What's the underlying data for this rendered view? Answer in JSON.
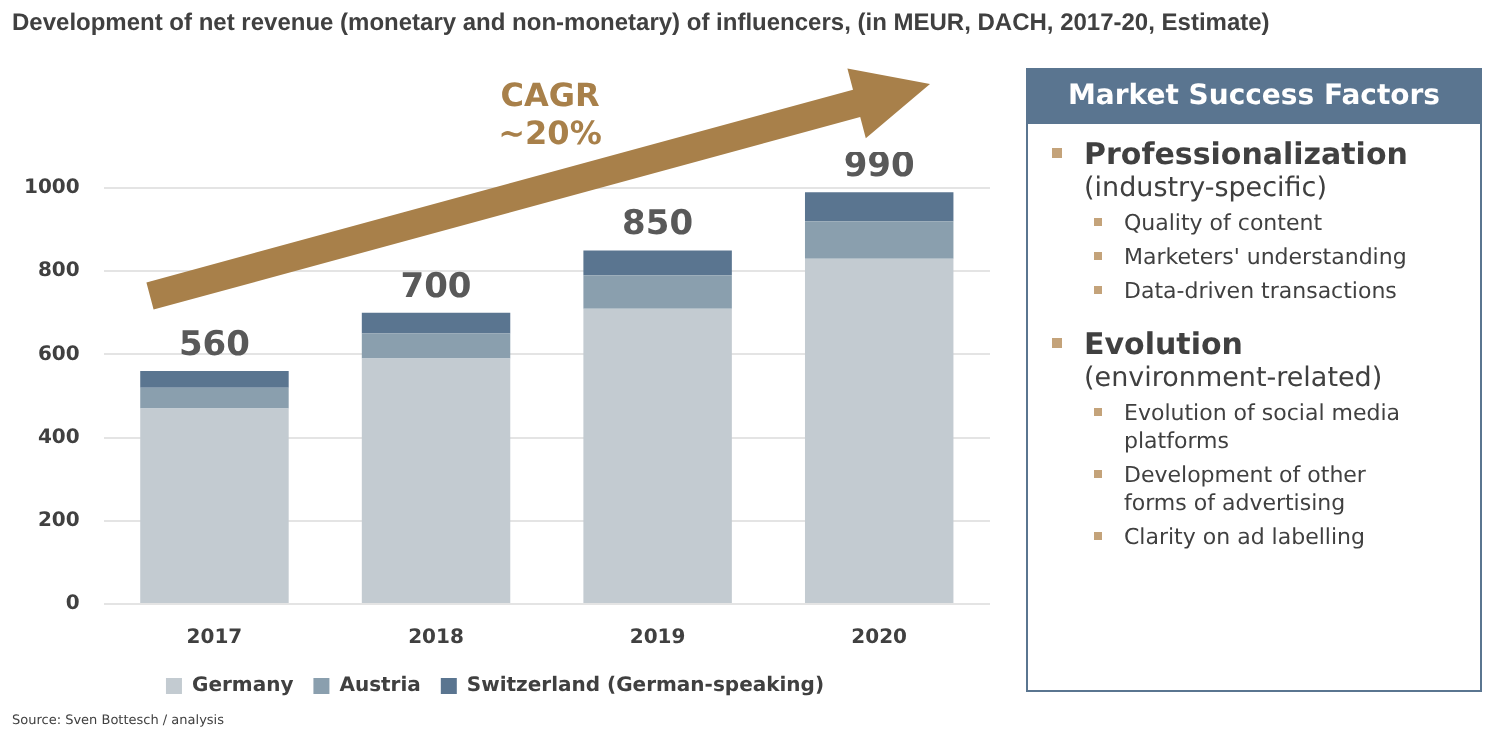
{
  "chart_data": [
    {
      "type": "bar",
      "title": "Development of net revenue (monetary and non-monetary) of influencers, (in MEUR, DACH, 2017-20, Estimate)",
      "categories": [
        "2017",
        "2018",
        "2019",
        "2020"
      ],
      "stacked": true,
      "series": [
        {
          "name": "Germany",
          "color": "#c3cbd1",
          "values": [
            470,
            590,
            710,
            830
          ]
        },
        {
          "name": "Austria",
          "color": "#8a9fae",
          "values": [
            50,
            60,
            80,
            90
          ]
        },
        {
          "name": "Switzerland (German-speaking)",
          "color": "#5a7590",
          "values": [
            40,
            50,
            60,
            70
          ]
        }
      ],
      "totals": [
        "560",
        "700",
        "850",
        "990"
      ],
      "ylim": [
        0,
        1000
      ],
      "yticks": [
        0,
        200,
        400,
        600,
        800,
        1000
      ],
      "grid": "y",
      "legend": "bottom",
      "annotations": [
        "CAGR",
        "~20%",
        "Source: Sven Bottesch / analysis"
      ]
    },
    {
      "type": "other",
      "title": "Market Success Factors",
      "annotations": [
        "Professionalization",
        "(industry-specific)",
        "Quality of content",
        "Marketers' understanding",
        "Data-driven transactions",
        "Evolution",
        "(environment-related)",
        "Evolution of social media platforms",
        "Development of other forms of advertising",
        "Clarity on ad labelling"
      ]
    }
  ]
}
